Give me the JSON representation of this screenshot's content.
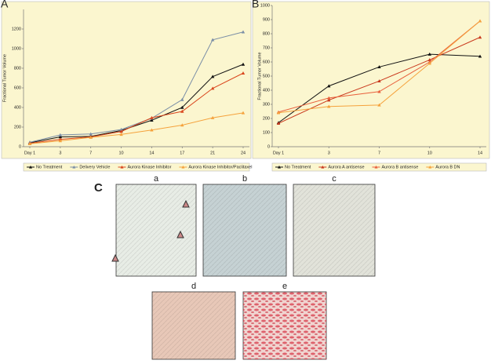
{
  "chart_data": [
    {
      "type": "line",
      "panel": "A",
      "y_label": "Fractional Tumor Volume",
      "categories": [
        "Day 1",
        "3",
        "7",
        "10",
        "14",
        "17",
        "21",
        "24"
      ],
      "ylim": [
        0,
        1400
      ],
      "yticks": [
        0,
        200,
        400,
        600,
        800,
        1000,
        1200
      ],
      "series": [
        {
          "name": "No Treatment",
          "color": "#111111",
          "values": [
            40,
            100,
            105,
            165,
            270,
            400,
            715,
            840
          ]
        },
        {
          "name": "Delivery Vehicle",
          "color": "#7a8ea6",
          "values": [
            45,
            120,
            130,
            175,
            290,
            480,
            1090,
            1170
          ]
        },
        {
          "name": "Aurora Kinase Inhibitor",
          "color": "#d9451c",
          "values": [
            35,
            75,
            100,
            155,
            295,
            360,
            595,
            750
          ]
        },
        {
          "name": "Aurora Kinase Inhibitor/Paclitaxel",
          "color": "#f5a23c",
          "values": [
            30,
            60,
            95,
            125,
            170,
            220,
            295,
            345
          ]
        }
      ]
    },
    {
      "type": "line",
      "panel": "B",
      "y_label": "Fractional Tumor Volume",
      "categories": [
        "Day 1",
        "3",
        "7",
        "10",
        "14"
      ],
      "ylim": [
        0,
        1000
      ],
      "yticks": [
        0,
        100,
        200,
        300,
        400,
        500,
        600,
        700,
        800,
        900,
        1000
      ],
      "series": [
        {
          "name": "No Treatment",
          "color": "#111111",
          "values": [
            170,
            430,
            565,
            655,
            640
          ]
        },
        {
          "name": "Aurora A antisense",
          "color": "#c9381c",
          "values": [
            165,
            330,
            465,
            615,
            775
          ]
        },
        {
          "name": "Aurora B antisense",
          "color": "#e8603c",
          "values": [
            245,
            345,
            390,
            600,
            890
          ]
        },
        {
          "name": "Aurora B DN",
          "color": "#f5a23c",
          "values": [
            240,
            285,
            295,
            590,
            890
          ]
        }
      ]
    }
  ],
  "images": {
    "panel": "C",
    "labels": [
      "a",
      "b",
      "c",
      "d",
      "e"
    ]
  }
}
